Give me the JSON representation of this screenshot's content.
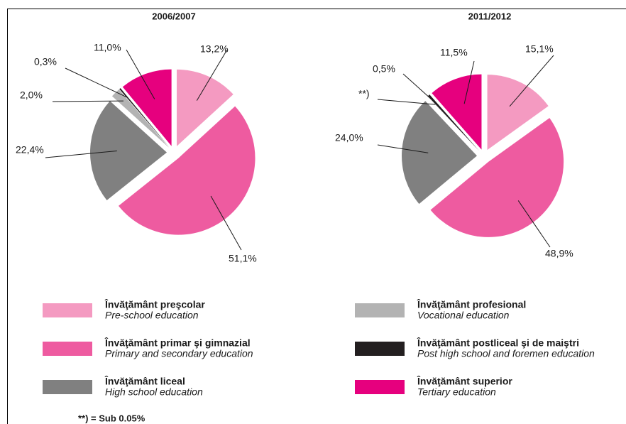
{
  "chart_data": [
    {
      "type": "pie",
      "title": "2006/2007",
      "values": [
        13.2,
        51.1,
        22.4,
        2.0,
        0.3,
        11.0
      ],
      "value_labels": [
        "13,2%",
        "51,1%",
        "22,4%",
        "2,0%",
        "0,3%",
        "11,0%"
      ]
    },
    {
      "type": "pie",
      "title": "2011/2012",
      "values": [
        15.1,
        48.9,
        24.0,
        0.04,
        0.5,
        11.5
      ],
      "value_labels": [
        "15,1%",
        "48,9%",
        "24,0%",
        "**)",
        "0,5%",
        "11,5%"
      ]
    }
  ],
  "legend": [
    {
      "name": "Învăţământ preşcolar",
      "translation": "Pre-school education",
      "color": "#f49ac1"
    },
    {
      "name": "Învăţământ primar şi gimnazial",
      "translation": "Primary and secondary education",
      "color": "#ee5ba0"
    },
    {
      "name": "Învăţământ liceal",
      "translation": "High school education",
      "color": "#808080"
    },
    {
      "name": "Învăţământ profesional",
      "translation": "Vocational education",
      "color": "#b3b3b3"
    },
    {
      "name": "Învăţământ postliceal şi de maiştri",
      "translation": "Post high school and foremen education",
      "color": "#231f20"
    },
    {
      "name": "Învăţământ superior",
      "translation": "Tertiary education",
      "color": "#e6007e"
    }
  ],
  "footnote": "**) = Sub 0.05%"
}
